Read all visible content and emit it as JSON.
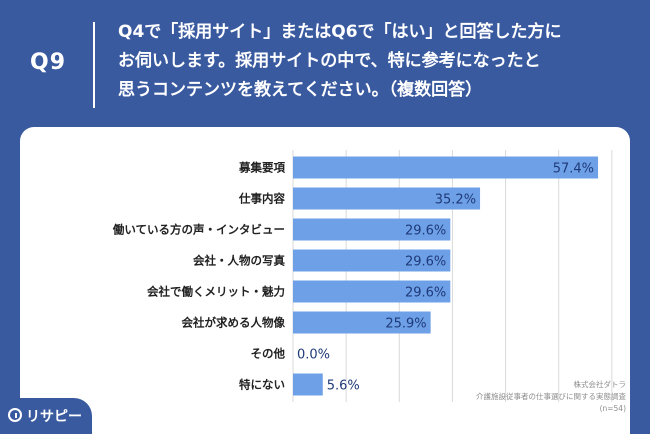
{
  "header": {
    "badge": "Q9",
    "question_lines": [
      "Q4で「採用サイト」またはQ6で「はい」と回答した方に",
      "お伺いします。採用サイトの中で、特に参考になったと",
      "思うコンテンツを教えてください。（複数回答）"
    ]
  },
  "chart_data": {
    "type": "bar",
    "orientation": "horizontal",
    "categories": [
      "募集要項",
      "仕事内容",
      "働いている方の声・インタビュー",
      "会社・人物の写真",
      "会社で働くメリット・魅力",
      "会社が求める人物像",
      "その他",
      "特にない"
    ],
    "values": [
      57.4,
      35.2,
      29.6,
      29.6,
      29.6,
      25.9,
      0.0,
      5.6
    ],
    "data_labels": [
      "57.4%",
      "35.2%",
      "29.6%",
      "29.6%",
      "29.6%",
      "25.9%",
      "0.0%",
      "5.6%"
    ],
    "xlim": [
      0,
      70
    ],
    "grid": true,
    "legend": "none",
    "bar_color": "#6ea0e8",
    "label_color": "#1f3a78"
  },
  "footer": {
    "lines": [
      "株式会社ダトラ",
      "介護施設従事者の仕事選びに関する実態調査",
      "(n=54)"
    ]
  },
  "logo": {
    "text": "リサピー",
    "icon": "pin-icon"
  },
  "colors": {
    "background": "#3a5aa0",
    "card": "#ffffff",
    "grid": "#d9d9d9"
  }
}
